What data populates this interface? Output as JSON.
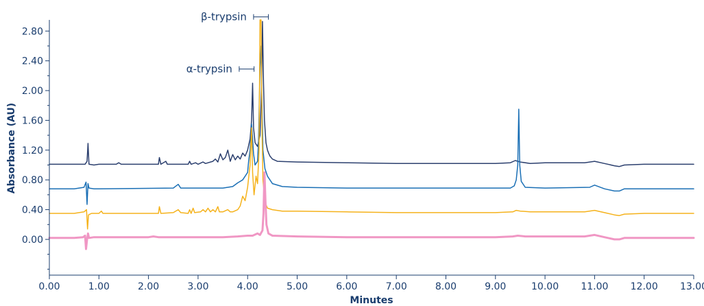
{
  "chart_data": {
    "type": "line",
    "title": "",
    "xlabel": "Minutes",
    "ylabel": "Absorbance (AU)",
    "xlim": [
      0,
      13
    ],
    "ylim": [
      -0.48,
      2.95
    ],
    "x_ticks": [
      0,
      1,
      2,
      3,
      4,
      5,
      6,
      7,
      8,
      9,
      10,
      11,
      12,
      13
    ],
    "x_tick_labels": [
      "0.00",
      "1.00",
      "2.00",
      "3.00",
      "4.00",
      "5.00",
      "6.00",
      "7.00",
      "8.00",
      "9.00",
      "10.00",
      "11.00",
      "12.00",
      "13.00"
    ],
    "y_ticks": [
      0,
      0.4,
      0.8,
      1.2,
      1.6,
      2.0,
      2.4,
      2.8
    ],
    "y_tick_labels": [
      "0.00",
      "0.40",
      "0.80",
      "1.20",
      "1.60",
      "2.00",
      "2.40",
      "2.80"
    ],
    "grid": false,
    "annotations": [
      {
        "text": "β-trypsin",
        "x_start": 4.12,
        "x_end": 4.42,
        "y": 2.99
      },
      {
        "text": "α-trypsin",
        "x_start": 3.83,
        "x_end": 4.13,
        "y": 2.29
      }
    ],
    "series": [
      {
        "color": "#2b3f6e",
        "points": [
          [
            0,
            1.01
          ],
          [
            0.6,
            1.01
          ],
          [
            0.72,
            1.01
          ],
          [
            0.76,
            1.05
          ],
          [
            0.78,
            1.29
          ],
          [
            0.8,
            1.01
          ],
          [
            0.9,
            1.0
          ],
          [
            1.0,
            1.01
          ],
          [
            1.35,
            1.01
          ],
          [
            1.4,
            1.03
          ],
          [
            1.45,
            1.01
          ],
          [
            2.2,
            1.01
          ],
          [
            2.22,
            1.1
          ],
          [
            2.25,
            1.01
          ],
          [
            2.35,
            1.05
          ],
          [
            2.38,
            1.01
          ],
          [
            2.8,
            1.01
          ],
          [
            2.83,
            1.05
          ],
          [
            2.86,
            1.01
          ],
          [
            2.95,
            1.03
          ],
          [
            3.0,
            1.01
          ],
          [
            3.1,
            1.04
          ],
          [
            3.15,
            1.02
          ],
          [
            3.3,
            1.05
          ],
          [
            3.35,
            1.08
          ],
          [
            3.4,
            1.04
          ],
          [
            3.45,
            1.15
          ],
          [
            3.5,
            1.07
          ],
          [
            3.55,
            1.1
          ],
          [
            3.6,
            1.2
          ],
          [
            3.65,
            1.05
          ],
          [
            3.7,
            1.14
          ],
          [
            3.75,
            1.07
          ],
          [
            3.8,
            1.12
          ],
          [
            3.85,
            1.08
          ],
          [
            3.9,
            1.16
          ],
          [
            3.95,
            1.12
          ],
          [
            4.0,
            1.2
          ],
          [
            4.05,
            1.35
          ],
          [
            4.08,
            1.6
          ],
          [
            4.1,
            2.1
          ],
          [
            4.12,
            1.5
          ],
          [
            4.15,
            1.3
          ],
          [
            4.2,
            1.25
          ],
          [
            4.25,
            1.4
          ],
          [
            4.28,
            2.0
          ],
          [
            4.3,
            2.93
          ],
          [
            4.32,
            2.1
          ],
          [
            4.34,
            1.6
          ],
          [
            4.37,
            1.3
          ],
          [
            4.4,
            1.2
          ],
          [
            4.43,
            1.15
          ],
          [
            4.45,
            1.12
          ],
          [
            4.5,
            1.08
          ],
          [
            4.6,
            1.05
          ],
          [
            5.0,
            1.04
          ],
          [
            6.0,
            1.03
          ],
          [
            7.0,
            1.02
          ],
          [
            8.0,
            1.02
          ],
          [
            9.0,
            1.02
          ],
          [
            9.3,
            1.03
          ],
          [
            9.4,
            1.06
          ],
          [
            9.5,
            1.04
          ],
          [
            9.7,
            1.02
          ],
          [
            10.0,
            1.03
          ],
          [
            10.8,
            1.03
          ],
          [
            11.0,
            1.05
          ],
          [
            11.2,
            1.02
          ],
          [
            11.4,
            0.99
          ],
          [
            11.5,
            0.98
          ],
          [
            11.6,
            1.0
          ],
          [
            12.0,
            1.01
          ],
          [
            13.0,
            1.01
          ]
        ]
      },
      {
        "color": "#1a6fb5",
        "points": [
          [
            0,
            0.68
          ],
          [
            0.5,
            0.68
          ],
          [
            0.7,
            0.7
          ],
          [
            0.74,
            0.77
          ],
          [
            0.76,
            0.47
          ],
          [
            0.78,
            0.75
          ],
          [
            0.8,
            0.69
          ],
          [
            0.9,
            0.68
          ],
          [
            1.0,
            0.68
          ],
          [
            2.5,
            0.69
          ],
          [
            2.6,
            0.74
          ],
          [
            2.65,
            0.69
          ],
          [
            3.5,
            0.69
          ],
          [
            3.7,
            0.71
          ],
          [
            3.8,
            0.76
          ],
          [
            3.9,
            0.8
          ],
          [
            3.95,
            0.85
          ],
          [
            4.0,
            0.9
          ],
          [
            4.02,
            1.05
          ],
          [
            4.05,
            1.2
          ],
          [
            4.08,
            1.55
          ],
          [
            4.1,
            1.35
          ],
          [
            4.12,
            1.15
          ],
          [
            4.15,
            1.0
          ],
          [
            4.2,
            1.05
          ],
          [
            4.22,
            1.3
          ],
          [
            4.25,
            2.3
          ],
          [
            4.27,
            2.6
          ],
          [
            4.29,
            1.8
          ],
          [
            4.31,
            1.2
          ],
          [
            4.35,
            0.95
          ],
          [
            4.4,
            0.85
          ],
          [
            4.5,
            0.75
          ],
          [
            4.7,
            0.71
          ],
          [
            5.0,
            0.7
          ],
          [
            6.0,
            0.69
          ],
          [
            7.0,
            0.69
          ],
          [
            8.0,
            0.69
          ],
          [
            9.0,
            0.69
          ],
          [
            9.3,
            0.69
          ],
          [
            9.38,
            0.72
          ],
          [
            9.42,
            0.8
          ],
          [
            9.45,
            1.0
          ],
          [
            9.47,
            1.75
          ],
          [
            9.49,
            1.0
          ],
          [
            9.52,
            0.78
          ],
          [
            9.6,
            0.7
          ],
          [
            10.0,
            0.69
          ],
          [
            10.9,
            0.7
          ],
          [
            11.0,
            0.73
          ],
          [
            11.2,
            0.68
          ],
          [
            11.4,
            0.65
          ],
          [
            11.5,
            0.65
          ],
          [
            11.6,
            0.68
          ],
          [
            12.0,
            0.68
          ],
          [
            13.0,
            0.68
          ]
        ]
      },
      {
        "color": "#f5b21b",
        "points": [
          [
            0,
            0.35
          ],
          [
            0.5,
            0.35
          ],
          [
            0.7,
            0.37
          ],
          [
            0.75,
            0.4
          ],
          [
            0.77,
            0.14
          ],
          [
            0.79,
            0.33
          ],
          [
            0.85,
            0.35
          ],
          [
            1.0,
            0.35
          ],
          [
            1.05,
            0.38
          ],
          [
            1.08,
            0.35
          ],
          [
            2.2,
            0.35
          ],
          [
            2.22,
            0.44
          ],
          [
            2.25,
            0.35
          ],
          [
            2.5,
            0.36
          ],
          [
            2.6,
            0.4
          ],
          [
            2.65,
            0.36
          ],
          [
            2.8,
            0.35
          ],
          [
            2.83,
            0.4
          ],
          [
            2.86,
            0.35
          ],
          [
            2.9,
            0.42
          ],
          [
            2.93,
            0.36
          ],
          [
            3.05,
            0.37
          ],
          [
            3.1,
            0.4
          ],
          [
            3.15,
            0.37
          ],
          [
            3.2,
            0.42
          ],
          [
            3.25,
            0.37
          ],
          [
            3.3,
            0.4
          ],
          [
            3.35,
            0.37
          ],
          [
            3.4,
            0.44
          ],
          [
            3.43,
            0.37
          ],
          [
            3.5,
            0.37
          ],
          [
            3.6,
            0.4
          ],
          [
            3.65,
            0.37
          ],
          [
            3.7,
            0.37
          ],
          [
            3.8,
            0.4
          ],
          [
            3.85,
            0.45
          ],
          [
            3.9,
            0.58
          ],
          [
            3.95,
            0.52
          ],
          [
            4.0,
            0.7
          ],
          [
            4.05,
            1.0
          ],
          [
            4.08,
            1.5
          ],
          [
            4.1,
            0.9
          ],
          [
            4.13,
            0.6
          ],
          [
            4.17,
            0.85
          ],
          [
            4.2,
            0.75
          ],
          [
            4.23,
            1.2
          ],
          [
            4.25,
            2.95
          ],
          [
            4.27,
            2.95
          ],
          [
            4.29,
            1.5
          ],
          [
            4.31,
            0.8
          ],
          [
            4.35,
            0.5
          ],
          [
            4.4,
            0.42
          ],
          [
            4.5,
            0.4
          ],
          [
            4.7,
            0.38
          ],
          [
            5.0,
            0.38
          ],
          [
            6.0,
            0.37
          ],
          [
            7.0,
            0.36
          ],
          [
            8.0,
            0.36
          ],
          [
            9.0,
            0.36
          ],
          [
            9.35,
            0.37
          ],
          [
            9.42,
            0.39
          ],
          [
            9.5,
            0.38
          ],
          [
            9.7,
            0.37
          ],
          [
            10.0,
            0.37
          ],
          [
            10.8,
            0.37
          ],
          [
            11.0,
            0.39
          ],
          [
            11.2,
            0.36
          ],
          [
            11.4,
            0.33
          ],
          [
            11.5,
            0.32
          ],
          [
            11.6,
            0.34
          ],
          [
            12.0,
            0.35
          ],
          [
            13.0,
            0.35
          ]
        ]
      },
      {
        "color": "#f097c4",
        "points": [
          [
            0,
            0.02
          ],
          [
            0.5,
            0.02
          ],
          [
            0.68,
            0.03
          ],
          [
            0.72,
            0.05
          ],
          [
            0.74,
            -0.13
          ],
          [
            0.76,
            0.0
          ],
          [
            0.78,
            0.08
          ],
          [
            0.8,
            0.02
          ],
          [
            0.9,
            0.03
          ],
          [
            1.0,
            0.03
          ],
          [
            2.0,
            0.03
          ],
          [
            2.1,
            0.04
          ],
          [
            2.2,
            0.03
          ],
          [
            3.5,
            0.03
          ],
          [
            3.8,
            0.04
          ],
          [
            4.0,
            0.05
          ],
          [
            4.1,
            0.05
          ],
          [
            4.2,
            0.08
          ],
          [
            4.25,
            0.06
          ],
          [
            4.3,
            0.12
          ],
          [
            4.32,
            0.35
          ],
          [
            4.34,
            0.9
          ],
          [
            4.36,
            0.5
          ],
          [
            4.38,
            0.2
          ],
          [
            4.42,
            0.08
          ],
          [
            4.5,
            0.05
          ],
          [
            5.0,
            0.04
          ],
          [
            6.0,
            0.03
          ],
          [
            7.0,
            0.03
          ],
          [
            8.0,
            0.03
          ],
          [
            9.0,
            0.03
          ],
          [
            9.35,
            0.04
          ],
          [
            9.45,
            0.05
          ],
          [
            9.6,
            0.04
          ],
          [
            10.0,
            0.04
          ],
          [
            10.8,
            0.04
          ],
          [
            11.0,
            0.06
          ],
          [
            11.2,
            0.03
          ],
          [
            11.4,
            0.0
          ],
          [
            11.5,
            0.0
          ],
          [
            11.6,
            0.02
          ],
          [
            12.0,
            0.02
          ],
          [
            13.0,
            0.02
          ]
        ]
      }
    ]
  }
}
